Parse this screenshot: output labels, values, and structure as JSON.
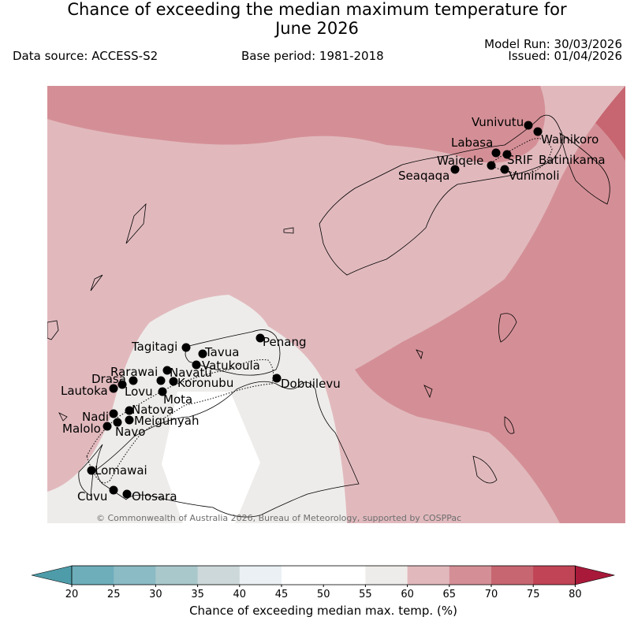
{
  "title_line1": "Chance of exceeding the median maximum temperature for",
  "title_line2": "June 2026",
  "data_source": "Data source: ACCESS-S2",
  "base_period": "Base period: 1981-2018",
  "model_run": "Model Run: 30/03/2026",
  "issued": "Issued: 01/04/2026",
  "copyright": "© Commonwealth of Australia 2026, Bureau of Meteorology, supported by COSPPac",
  "stations": [
    {
      "name": "Vunivutu"
    },
    {
      "name": "Wainikoro"
    },
    {
      "name": "Labasa"
    },
    {
      "name": "Waiqele"
    },
    {
      "name": "SRIF"
    },
    {
      "name": "Batinikama"
    },
    {
      "name": "Seaqaqa"
    },
    {
      "name": "Vunimoli"
    },
    {
      "name": "Tagitagi"
    },
    {
      "name": "Tavua"
    },
    {
      "name": "Penang"
    },
    {
      "name": "Vatukoula"
    },
    {
      "name": "Rarawai"
    },
    {
      "name": "Navatu"
    },
    {
      "name": "Drasa"
    },
    {
      "name": "Koronubu"
    },
    {
      "name": "Dobuilevu"
    },
    {
      "name": "Lautoka"
    },
    {
      "name": "Lovu"
    },
    {
      "name": "Mota"
    },
    {
      "name": "Natova"
    },
    {
      "name": "Nadi"
    },
    {
      "name": "Meigunyah"
    },
    {
      "name": "Malolo"
    },
    {
      "name": "Navo"
    },
    {
      "name": "Lomawai"
    },
    {
      "name": "Cuvu"
    },
    {
      "name": "Olosara"
    }
  ],
  "colorbar": {
    "ticks": [
      "20",
      "25",
      "30",
      "35",
      "40",
      "45",
      "50",
      "55",
      "60",
      "65",
      "70",
      "75",
      "80"
    ],
    "colors": [
      "#6eaebb",
      "#8bbbc4",
      "#a9c8cc",
      "#ccd8d9",
      "#eaf0f3",
      "#ffffff",
      "#ffffff",
      "#eeecea",
      "#e1b9bd",
      "#d48f96",
      "#c76670",
      "#c04455"
    ],
    "under_color": "#4e9ca9",
    "over_color": "#a8193a",
    "label": "Chance of exceeding median max. temp. (%)"
  }
}
